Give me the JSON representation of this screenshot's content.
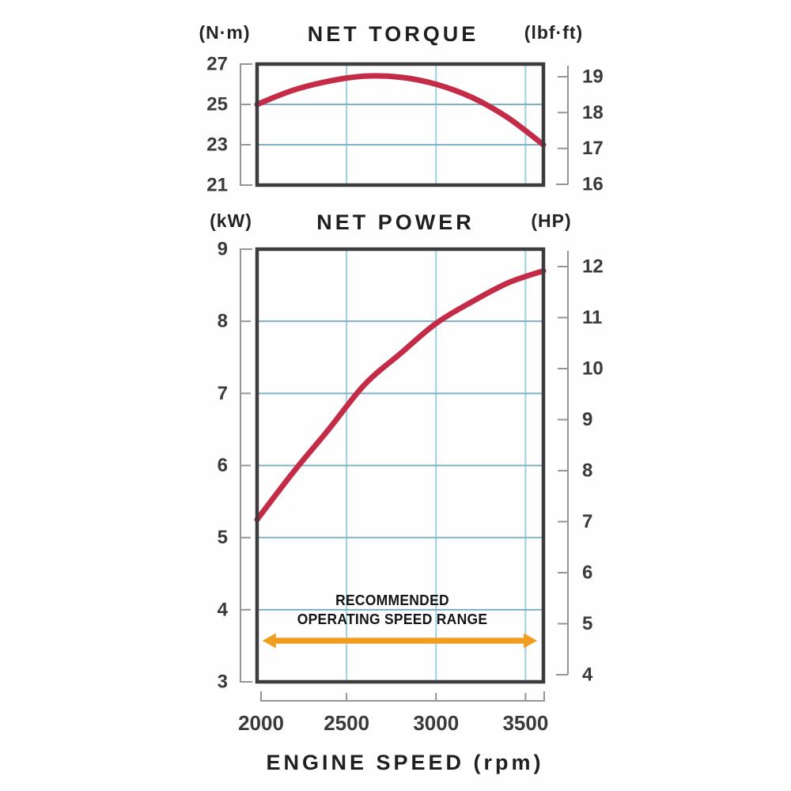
{
  "colors": {
    "curve": "#c32b46",
    "frame": "#3b3b3d",
    "grid_horizontal": "#7fb0c6",
    "grid_vertical": "#a2d4e2",
    "bracket": "#959595",
    "tick_label": "#3a3a3a",
    "title": "#1f1f1f",
    "arrow": "#f19d20",
    "background": "#fefefe"
  },
  "chart_data": [
    {
      "id": "torque",
      "type": "line",
      "title": "NET TORQUE",
      "left_axis": {
        "unit": "(N·m)",
        "ticks": [
          27,
          25,
          23,
          21
        ],
        "range": [
          21,
          27
        ]
      },
      "right_axis": {
        "unit": "(lbf·ft)",
        "ticks": [
          19,
          18,
          17,
          16
        ]
      },
      "x": {
        "range": [
          2000,
          3600
        ],
        "gridlines": [
          2500,
          3000,
          3500
        ]
      },
      "y_gridlines": [
        25,
        23
      ],
      "series": [
        {
          "name": "net-torque",
          "x": [
            2000,
            2200,
            2400,
            2600,
            2800,
            3000,
            3200,
            3400,
            3600
          ],
          "values": [
            25.0,
            25.7,
            26.15,
            26.4,
            26.35,
            26.0,
            25.35,
            24.35,
            23.0
          ]
        }
      ]
    },
    {
      "id": "power",
      "type": "line",
      "title": "NET POWER",
      "left_axis": {
        "unit": "(kW)",
        "ticks": [
          9,
          8,
          7,
          6,
          5,
          4,
          3
        ],
        "range": [
          3,
          9
        ]
      },
      "right_axis": {
        "unit": "(HP)",
        "ticks": [
          12,
          11,
          10,
          9,
          8,
          7,
          6,
          5,
          4
        ]
      },
      "x": {
        "range": [
          2000,
          3600
        ],
        "gridlines": [
          2500,
          3000,
          3500
        ],
        "tick_values": [
          2000,
          2500,
          3000,
          3500
        ],
        "tick_labels": [
          "2000",
          "2500",
          "3000",
          "3500"
        ],
        "axis_label": "ENGINE SPEED (rpm)"
      },
      "y_gridlines": [
        8,
        7,
        6,
        5,
        4
      ],
      "series": [
        {
          "name": "net-power",
          "x": [
            2000,
            2200,
            2400,
            2600,
            2800,
            3000,
            3200,
            3400,
            3600
          ],
          "values": [
            5.25,
            5.9,
            6.5,
            7.12,
            7.55,
            7.97,
            8.27,
            8.53,
            8.7
          ]
        }
      ],
      "annotation": {
        "lines": [
          "RECOMMENDED",
          "OPERATING SPEED RANGE"
        ],
        "arrow": {
          "y": 3.57,
          "x_from": 2030,
          "x_to": 3565
        }
      }
    }
  ]
}
